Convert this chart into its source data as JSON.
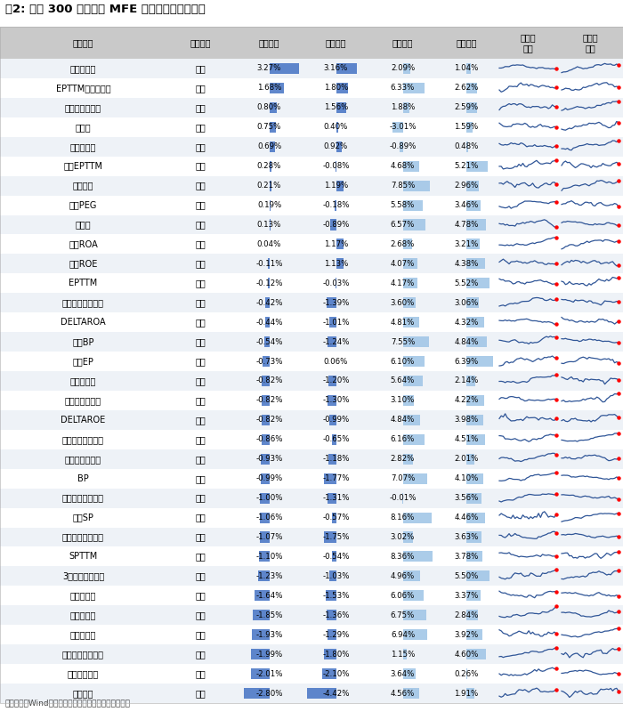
{
  "title": "图2: 沪深 300 中各因子 MFE 组合的超额收益表现",
  "footer": "资料来源：Wind，朝阳永续，国信证券经济研究所整理",
  "rows": [
    [
      "三个月反转",
      "反向",
      "3.27%",
      "3.16%",
      "2.09%",
      "1.04%"
    ],
    [
      "EPTTM一年分位点",
      "正向",
      "1.68%",
      "1.80%",
      "6.33%",
      "2.62%"
    ],
    [
      "三个月机构覆盖",
      "正向",
      "0.80%",
      "1.56%",
      "1.88%",
      "2.59%"
    ],
    [
      "特异度",
      "反向",
      "0.75%",
      "0.40%",
      "-3.01%",
      "1.59%"
    ],
    [
      "一个月反转",
      "反向",
      "0.69%",
      "0.92%",
      "-0.89%",
      "0.48%"
    ],
    [
      "预期EPTTM",
      "正向",
      "0.28%",
      "-0.08%",
      "4.68%",
      "5.21%"
    ],
    [
      "高管薪酬",
      "正向",
      "0.21%",
      "1.19%",
      "7.85%",
      "2.96%"
    ],
    [
      "预期PEG",
      "反向",
      "0.19%",
      "-0.18%",
      "5.58%",
      "3.46%"
    ],
    [
      "股息率",
      "正向",
      "0.13%",
      "-0.89%",
      "6.57%",
      "4.78%"
    ],
    [
      "单季ROA",
      "正向",
      "0.04%",
      "1.17%",
      "2.68%",
      "3.21%"
    ],
    [
      "单季ROE",
      "正向",
      "-0.11%",
      "1.13%",
      "4.07%",
      "4.38%"
    ],
    [
      "EPTTM",
      "正向",
      "-0.12%",
      "-0.03%",
      "4.17%",
      "5.52%"
    ],
    [
      "单季营利同比增速",
      "正向",
      "-0.42%",
      "-1.39%",
      "3.60%",
      "3.06%"
    ],
    [
      "DELTAROA",
      "正向",
      "-0.44%",
      "-1.01%",
      "4.81%",
      "4.32%"
    ],
    [
      "预期BP",
      "正向",
      "-0.54%",
      "-1.24%",
      "7.55%",
      "4.84%"
    ],
    [
      "单季EP",
      "正向",
      "-0.73%",
      "0.06%",
      "6.10%",
      "6.39%"
    ],
    [
      "一个月波动",
      "反向",
      "-0.82%",
      "-1.20%",
      "5.64%",
      "2.14%"
    ],
    [
      "单季超预期幅度",
      "正向",
      "-0.82%",
      "-1.30%",
      "3.10%",
      "4.22%"
    ],
    [
      "DELTAROE",
      "正向",
      "-0.82%",
      "-0.99%",
      "4.84%",
      "3.98%"
    ],
    [
      "标准化预期外盈利",
      "正向",
      "-0.86%",
      "-0.65%",
      "6.16%",
      "4.51%"
    ],
    [
      "预期净利润环比",
      "正向",
      "-0.93%",
      "-1.18%",
      "2.82%",
      "2.01%"
    ],
    [
      "BP",
      "正向",
      "-0.99%",
      "-1.77%",
      "7.07%",
      "4.10%"
    ],
    [
      "单季营收同比增速",
      "正向",
      "-1.00%",
      "-1.31%",
      "-0.01%",
      "3.56%"
    ],
    [
      "单季SP",
      "正向",
      "-1.06%",
      "-0.57%",
      "8.16%",
      "4.46%"
    ],
    [
      "单季净利同比增速",
      "正向",
      "-1.07%",
      "-1.75%",
      "3.02%",
      "3.63%"
    ],
    [
      "SPTTM",
      "正向",
      "-1.10%",
      "-0.54%",
      "8.36%",
      "3.78%"
    ],
    [
      "3个月盈利上下调",
      "正向",
      "-1.23%",
      "-1.03%",
      "4.96%",
      "5.50%"
    ],
    [
      "三个月波动",
      "反向",
      "-1.64%",
      "-1.53%",
      "6.06%",
      "3.37%"
    ],
    [
      "一个月换手",
      "反向",
      "-1.85%",
      "-1.36%",
      "6.75%",
      "2.84%"
    ],
    [
      "三个月换手",
      "反向",
      "-1.93%",
      "-1.29%",
      "6.94%",
      "3.92%"
    ],
    [
      "标准化预期外收入",
      "正向",
      "-1.99%",
      "-1.80%",
      "1.15%",
      "4.60%"
    ],
    [
      "非流动性冲击",
      "正向",
      "-2.01%",
      "-2.10%",
      "3.64%",
      "0.26%"
    ],
    [
      "一年动量",
      "正向",
      "-2.80%",
      "-4.42%",
      "4.56%",
      "1.91%"
    ]
  ],
  "header_bg": "#C9C9C9",
  "odd_bg": "#EEF2F7",
  "even_bg": "#FFFFFF",
  "bar_blue": "#4472C4",
  "bar_lblue": "#9DC3E6",
  "spark_color": "#2F5597",
  "spark_dot": "#FF0000"
}
